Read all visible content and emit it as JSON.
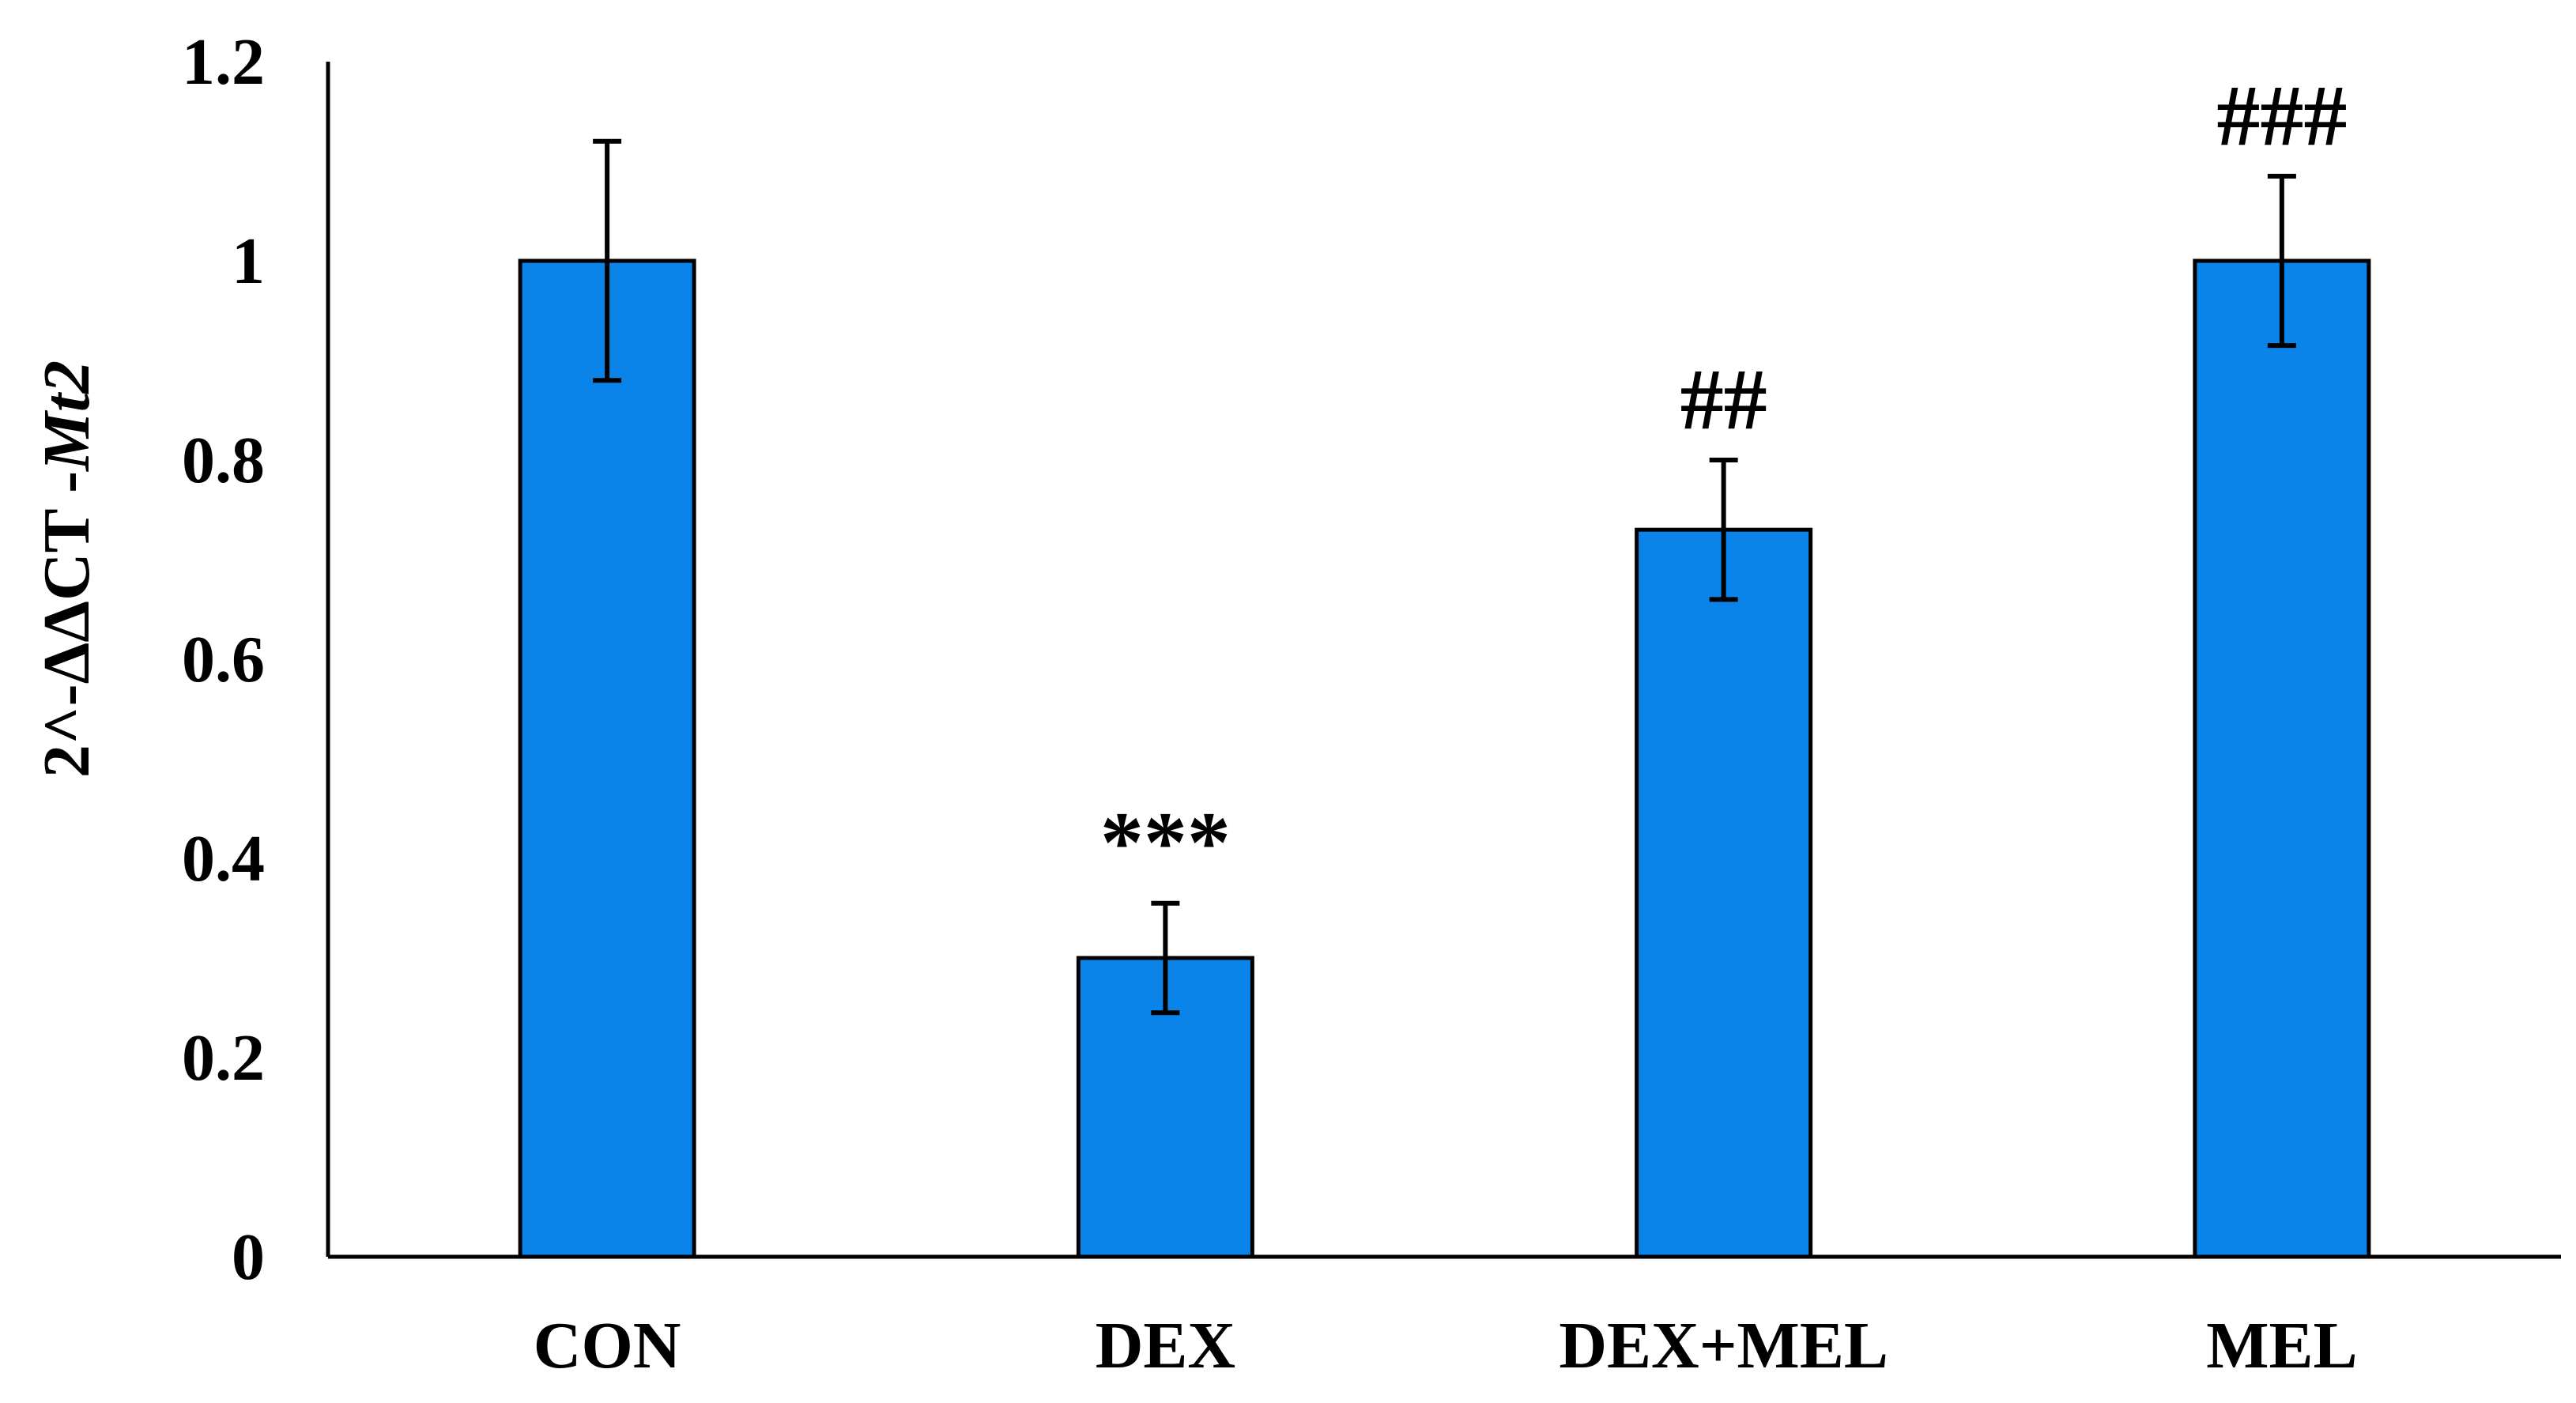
{
  "chart_data": {
    "type": "bar",
    "categories": [
      "CON",
      "DEX",
      "DEX+MEL",
      "MEL"
    ],
    "values": [
      1.0,
      0.3,
      0.73,
      1.0
    ],
    "errors": [
      0.12,
      0.055,
      0.07,
      0.085
    ],
    "annotations": [
      "",
      "***",
      "##",
      "###"
    ],
    "ylabel_prefix": "2^-ΔΔCT -",
    "ylabel_italic": "Mt2",
    "ylim": [
      0,
      1.2
    ],
    "yticks": [
      0,
      0.2,
      0.4,
      0.6,
      0.8,
      1,
      1.2
    ],
    "ytick_labels": [
      "0",
      "0.2",
      "0.4",
      "0.6",
      "0.8",
      "1",
      "1.2"
    ],
    "grid": false,
    "legend": "none",
    "colors": {
      "bar": "#0a84e8",
      "bar_stroke": "#000000",
      "axis": "#000000"
    }
  }
}
